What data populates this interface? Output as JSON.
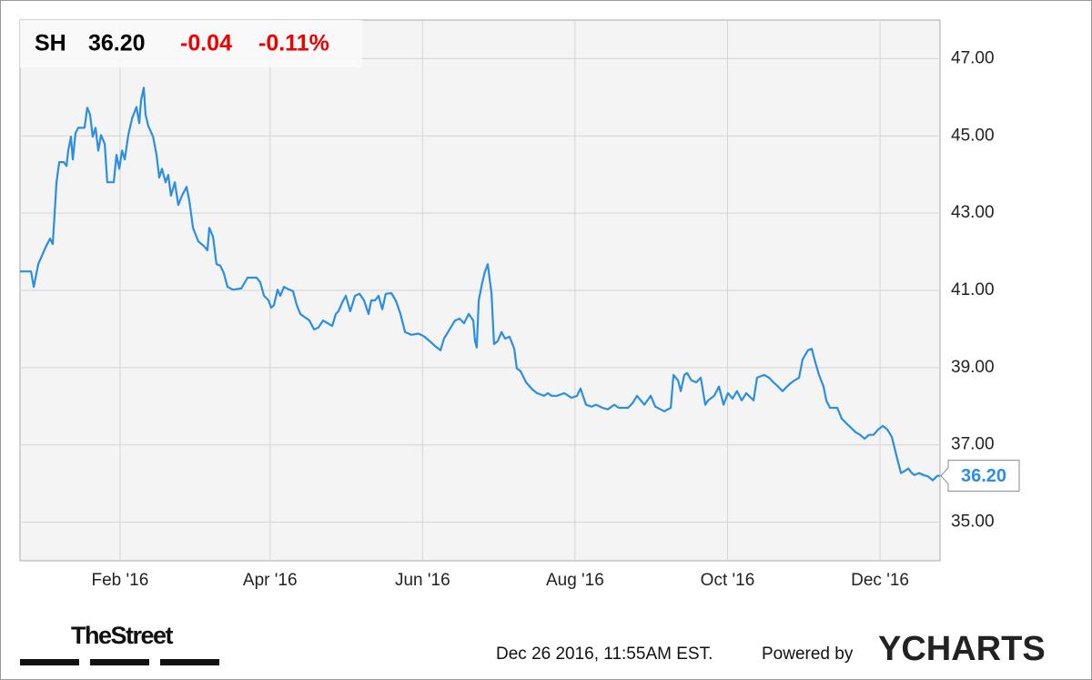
{
  "header": {
    "symbol": "SH",
    "price": "36.20",
    "change": "-0.04",
    "change_pct": "-0.11%"
  },
  "footer": {
    "brand": "TheStreet",
    "timestamp": "Dec 26 2016, 11:55AM EST.",
    "powered": "Powered by",
    "provider": "YCHARTS"
  },
  "chart_data": {
    "type": "line",
    "color": "#2b8ee0",
    "grid": true,
    "xlim": [
      0,
      368
    ],
    "ylim": [
      34,
      48
    ],
    "xticks": [
      {
        "value": 40,
        "label": "Feb '16"
      },
      {
        "value": 100,
        "label": "Apr '16"
      },
      {
        "value": 161,
        "label": "Jun '16"
      },
      {
        "value": 222,
        "label": "Aug '16"
      },
      {
        "value": 283,
        "label": "Oct '16"
      },
      {
        "value": 344,
        "label": "Dec '16"
      }
    ],
    "yticks": [
      {
        "value": 35,
        "label": "35.00"
      },
      {
        "value": 37,
        "label": "37.00"
      },
      {
        "value": 39,
        "label": "39.00"
      },
      {
        "value": 41,
        "label": "41.00"
      },
      {
        "value": 43,
        "label": "43.00"
      },
      {
        "value": 45,
        "label": "45.00"
      },
      {
        "value": 47,
        "label": "47.00"
      }
    ],
    "x": [
      0,
      4.4,
      5.5,
      7.3,
      10.2,
      12.0,
      13.1,
      14.6,
      15.7,
      17.5,
      18.6,
      19.3,
      20.4,
      21.1,
      22.2,
      23.3,
      25.8,
      26.9,
      28.0,
      29.1,
      30.2,
      31.3,
      32.4,
      33.9,
      34.9,
      37.5,
      38.6,
      39.7,
      40.8,
      41.9,
      43.3,
      44.8,
      46.6,
      47.7,
      48.4,
      49.5,
      50.2,
      51.3,
      53.2,
      54.6,
      55.7,
      56.8,
      58.2,
      59.3,
      60.4,
      61.9,
      63.3,
      64.8,
      66.6,
      67.7,
      69.2,
      71.3,
      73.5,
      75.0,
      75.7,
      77.2,
      78.6,
      80.1,
      81.5,
      83.0,
      85.2,
      88.5,
      91.0,
      94.6,
      96.1,
      97.6,
      99.4,
      100.5,
      101.6,
      103.0,
      104.1,
      105.6,
      107.7,
      109.2,
      110.7,
      112.1,
      115.8,
      117.6,
      119.4,
      121.2,
      123.0,
      124.9,
      126.3,
      127.4,
      128.9,
      130.3,
      132.1,
      134.0,
      135.8,
      137.6,
      139.4,
      140.5,
      142.0,
      143.4,
      144.9,
      146.3,
      148.5,
      150.3,
      152.2,
      154.0,
      156.5,
      159.4,
      161.6,
      163.8,
      166.0,
      168.2,
      169.6,
      171.8,
      174.0,
      175.8,
      177.6,
      179.5,
      181.3,
      182.0,
      182.7,
      183.5,
      184.9,
      186.0,
      187.1,
      188.6,
      189.6,
      191.1,
      192.6,
      194.0,
      195.8,
      197.7,
      198.7,
      200.2,
      202.4,
      204.9,
      206.8,
      209.7,
      211.1,
      212.6,
      214.8,
      217.7,
      220.6,
      222.8,
      224.2,
      226.4,
      228.6,
      230.4,
      233.0,
      235.1,
      237.7,
      239.5,
      243.2,
      245.0,
      246.8,
      249.7,
      252.3,
      254.1,
      257.7,
      260.3,
      261.4,
      263.2,
      264.3,
      265.7,
      266.8,
      268.6,
      270.5,
      272.3,
      274.1,
      275.2,
      277.7,
      279.6,
      281.4,
      283.2,
      285.0,
      286.8,
      288.7,
      290.5,
      293.4,
      294.8,
      297.7,
      299.6,
      301.4,
      303.2,
      305.0,
      307.9,
      309.8,
      311.6,
      313.0,
      315.2,
      316.7,
      317.8,
      319.6,
      321.4,
      322.5,
      324.0,
      326.9,
      328.7,
      330.5,
      332.3,
      334.2,
      336.0,
      337.8,
      339.6,
      341.4,
      343.3,
      345.1,
      346.9,
      348.7,
      350.5,
      352.4,
      353.8,
      355.3,
      356.7,
      357.8,
      359.6,
      361.4,
      363.3,
      365.1,
      366.9,
      368.0
    ],
    "values": [
      41.49,
      41.49,
      41.09,
      41.68,
      42.11,
      42.34,
      42.2,
      43.8,
      44.32,
      44.32,
      44.22,
      44.62,
      44.98,
      44.39,
      45.07,
      45.21,
      45.21,
      45.73,
      45.56,
      44.98,
      45.21,
      44.62,
      45.02,
      44.79,
      43.8,
      43.8,
      44.51,
      44.15,
      44.62,
      44.39,
      45.02,
      45.45,
      45.75,
      45.33,
      45.92,
      46.25,
      45.56,
      45.26,
      44.98,
      44.51,
      43.92,
      44.15,
      43.8,
      43.99,
      43.45,
      43.8,
      43.21,
      43.45,
      43.68,
      43.33,
      42.62,
      42.27,
      42.15,
      42.04,
      42.62,
      42.39,
      41.68,
      41.64,
      41.45,
      41.09,
      41.02,
      41.05,
      41.33,
      41.33,
      41.21,
      40.86,
      40.74,
      40.55,
      40.62,
      41.02,
      40.86,
      41.09,
      41.02,
      40.98,
      40.62,
      40.39,
      40.22,
      39.99,
      40.04,
      40.22,
      40.15,
      40.08,
      40.39,
      40.46,
      40.69,
      40.86,
      40.46,
      40.86,
      40.91,
      40.74,
      40.39,
      40.74,
      40.74,
      40.86,
      40.51,
      40.91,
      40.93,
      40.74,
      40.39,
      39.92,
      39.85,
      39.88,
      39.81,
      39.69,
      39.56,
      39.45,
      39.75,
      39.99,
      40.22,
      40.27,
      40.15,
      40.39,
      40.22,
      39.69,
      39.52,
      40.74,
      41.21,
      41.49,
      41.68,
      40.93,
      39.61,
      39.69,
      39.92,
      39.75,
      39.8,
      39.49,
      38.98,
      38.91,
      38.62,
      38.44,
      38.34,
      38.27,
      38.34,
      38.27,
      38.27,
      38.34,
      38.22,
      38.27,
      38.46,
      38.04,
      37.99,
      38.04,
      37.96,
      37.92,
      38.04,
      37.96,
      37.96,
      38.08,
      38.27,
      38.04,
      38.27,
      37.99,
      37.87,
      37.96,
      38.81,
      38.67,
      38.39,
      38.81,
      38.86,
      38.67,
      38.62,
      38.74,
      38.04,
      38.15,
      38.27,
      38.51,
      38.04,
      38.34,
      38.2,
      38.39,
      38.15,
      38.34,
      38.15,
      38.74,
      38.81,
      38.74,
      38.62,
      38.51,
      38.39,
      38.58,
      38.67,
      38.74,
      39.21,
      39.45,
      39.49,
      39.21,
      38.81,
      38.51,
      38.15,
      37.96,
      37.96,
      37.68,
      37.56,
      37.45,
      37.33,
      37.26,
      37.16,
      37.26,
      37.26,
      37.4,
      37.49,
      37.4,
      37.21,
      36.74,
      36.27,
      36.32,
      36.39,
      36.27,
      36.22,
      36.27,
      36.22,
      36.18,
      36.08,
      36.2,
      36.2
    ]
  }
}
